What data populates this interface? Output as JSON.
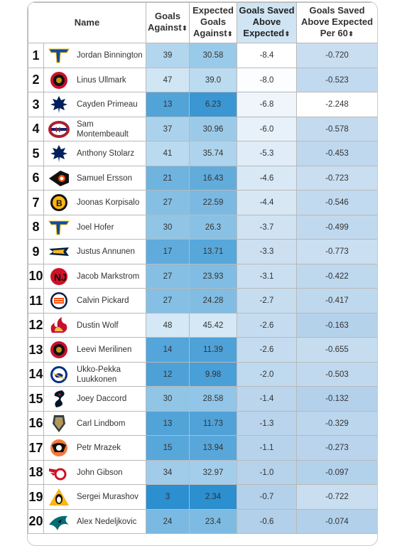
{
  "headers": {
    "name": "Name",
    "ga": "Goals Against",
    "xga": "Expected Goals Against",
    "gsax": "Goals Saved Above Expected",
    "gsax60": "Goals Saved Above Expected Per 60",
    "sort_icon": "⬍"
  },
  "colors": {
    "ga_scale": [
      "#f2f8fc",
      "#2b8fd0"
    ],
    "xga_scale": [
      "#f2f8fc",
      "#2b8fd0"
    ],
    "gsax_scale": [
      "#ffffff",
      "#a9cbe8"
    ],
    "gsax60_scale": [
      "#ffffff",
      "#a9cbe8"
    ]
  },
  "rows": [
    {
      "rank": "1",
      "name": "Jordan Binnington",
      "team_icon": "st-louis-blues-icon",
      "ga": "39",
      "xga": "30.58",
      "gsax": "-8.4",
      "gsax60": "-0.720"
    },
    {
      "rank": "2",
      "name": "Linus Ullmark",
      "team_icon": "ottawa-senators-icon",
      "ga": "47",
      "xga": "39.0",
      "gsax": "-8.0",
      "gsax60": "-0.523"
    },
    {
      "rank": "3",
      "name": "Cayden Primeau",
      "team_icon": "toronto-maple-leafs-icon",
      "ga": "13",
      "xga": "6.23",
      "gsax": "-6.8",
      "gsax60": "-2.248"
    },
    {
      "rank": "4",
      "name": "Sam Montembeault",
      "team_icon": "montreal-canadiens-icon",
      "ga": "37",
      "xga": "30.96",
      "gsax": "-6.0",
      "gsax60": "-0.578"
    },
    {
      "rank": "5",
      "name": "Anthony Stolarz",
      "team_icon": "toronto-maple-leafs-icon",
      "ga": "41",
      "xga": "35.74",
      "gsax": "-5.3",
      "gsax60": "-0.453"
    },
    {
      "rank": "6",
      "name": "Samuel Ersson",
      "team_icon": "philadelphia-flyers-icon",
      "ga": "21",
      "xga": "16.43",
      "gsax": "-4.6",
      "gsax60": "-0.723"
    },
    {
      "rank": "7",
      "name": "Joonas Korpisalo",
      "team_icon": "boston-bruins-icon",
      "ga": "27",
      "xga": "22.59",
      "gsax": "-4.4",
      "gsax60": "-0.546"
    },
    {
      "rank": "8",
      "name": "Joel Hofer",
      "team_icon": "st-louis-blues-icon",
      "ga": "30",
      "xga": "26.3",
      "gsax": "-3.7",
      "gsax60": "-0.499"
    },
    {
      "rank": "9",
      "name": "Justus Annunen",
      "team_icon": "nashville-predators-icon",
      "ga": "17",
      "xga": "13.71",
      "gsax": "-3.3",
      "gsax60": "-0.773"
    },
    {
      "rank": "10",
      "name": "Jacob Markstrom",
      "team_icon": "new-jersey-devils-icon",
      "ga": "27",
      "xga": "23.93",
      "gsax": "-3.1",
      "gsax60": "-0.422"
    },
    {
      "rank": "11",
      "name": "Calvin Pickard",
      "team_icon": "edmonton-oilers-icon",
      "ga": "27",
      "xga": "24.28",
      "gsax": "-2.7",
      "gsax60": "-0.417"
    },
    {
      "rank": "12",
      "name": "Dustin Wolf",
      "team_icon": "calgary-flames-icon",
      "ga": "48",
      "xga": "45.42",
      "gsax": "-2.6",
      "gsax60": "-0.163"
    },
    {
      "rank": "13",
      "name": "Leevi Merilinen",
      "team_icon": "ottawa-senators-icon",
      "ga": "14",
      "xga": "11.39",
      "gsax": "-2.6",
      "gsax60": "-0.655"
    },
    {
      "rank": "14",
      "name": "Ukko-Pekka Luukkonen",
      "team_icon": "buffalo-sabres-icon",
      "ga": "12",
      "xga": "9.98",
      "gsax": "-2.0",
      "gsax60": "-0.503"
    },
    {
      "rank": "15",
      "name": "Joey Daccord",
      "team_icon": "seattle-kraken-icon",
      "ga": "30",
      "xga": "28.58",
      "gsax": "-1.4",
      "gsax60": "-0.132"
    },
    {
      "rank": "16",
      "name": "Carl Lindbom",
      "team_icon": "vegas-golden-knights-icon",
      "ga": "13",
      "xga": "11.73",
      "gsax": "-1.3",
      "gsax60": "-0.329"
    },
    {
      "rank": "17",
      "name": "Petr Mrazek",
      "team_icon": "anaheim-ducks-icon",
      "ga": "15",
      "xga": "13.94",
      "gsax": "-1.1",
      "gsax60": "-0.273"
    },
    {
      "rank": "18",
      "name": "John Gibson",
      "team_icon": "detroit-red-wings-icon",
      "ga": "34",
      "xga": "32.97",
      "gsax": "-1.0",
      "gsax60": "-0.097"
    },
    {
      "rank": "19",
      "name": "Sergei Murashov",
      "team_icon": "pittsburgh-penguins-icon",
      "ga": "3",
      "xga": "2.34",
      "gsax": "-0.7",
      "gsax60": "-0.722"
    },
    {
      "rank": "20",
      "name": "Alex Nedeljkovic",
      "team_icon": "san-jose-sharks-icon",
      "ga": "24",
      "xga": "23.4",
      "gsax": "-0.6",
      "gsax60": "-0.074"
    }
  ]
}
